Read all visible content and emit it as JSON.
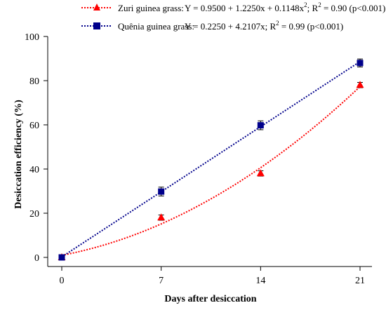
{
  "chart_data": {
    "type": "scatter",
    "title": "",
    "xlabel": "Days after desiccation",
    "ylabel": "Desiccation efficiency (%)",
    "x": [
      0,
      7,
      14,
      21
    ],
    "x_ticks": [
      "0",
      "7",
      "14",
      "21"
    ],
    "y_ticks": [
      "0",
      "20",
      "40",
      "60",
      "80",
      "100"
    ],
    "xlim": [
      0,
      21
    ],
    "ylim": [
      0,
      100
    ],
    "grid": false,
    "legend_position": "top",
    "series": [
      {
        "name": "Zuri guinea grass:",
        "equation": "Y = 0.9500 + 1.2250x + 0.1148x",
        "eq_sup": "2",
        "r2_prefix": "; R",
        "r2_sup": "2",
        "r2_suffix": " = 0.90 (p<0.001)",
        "marker": "triangle",
        "color": "#ff0000",
        "values": [
          0,
          18,
          38,
          78
        ],
        "errors": [
          0.5,
          1.2,
          1.2,
          1.2
        ],
        "fit": {
          "type": "quadratic",
          "coef": [
            0.95,
            1.225,
            0.1148
          ]
        }
      },
      {
        "name": "Quênia guinea grass:",
        "equation": "Y = 0.2250 + 4.2107x",
        "eq_sup": "",
        "r2_prefix": "; R",
        "r2_sup": "2",
        "r2_suffix": " = 0.99 (p<0.001)",
        "marker": "square",
        "color": "#00008b",
        "values": [
          0,
          29.8,
          59.8,
          88
        ],
        "errors": [
          0.5,
          2.0,
          2.0,
          1.8
        ],
        "fit": {
          "type": "linear",
          "coef": [
            0.225,
            4.2107
          ]
        }
      }
    ]
  }
}
